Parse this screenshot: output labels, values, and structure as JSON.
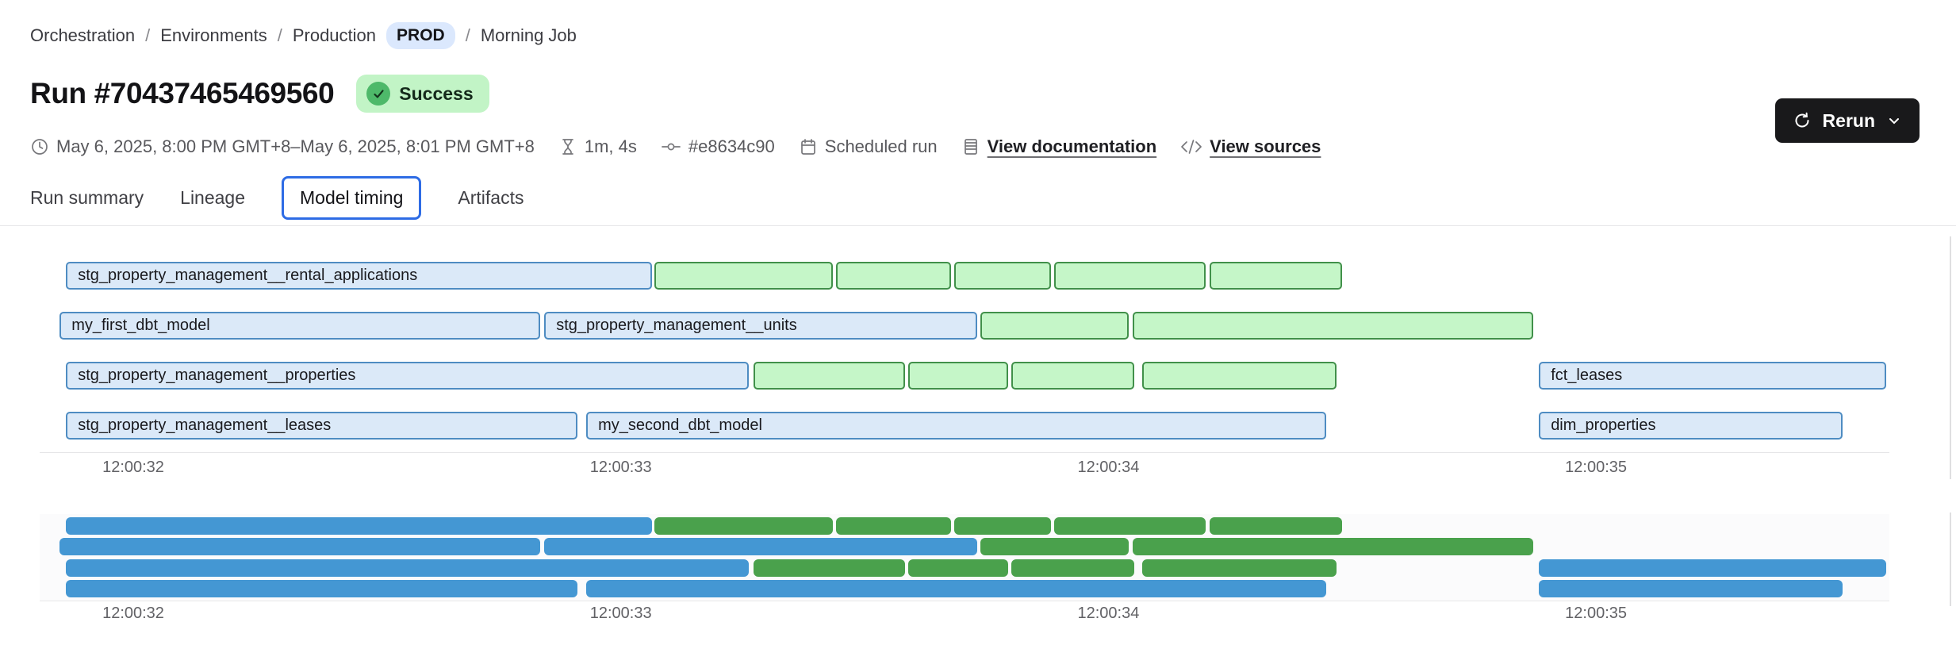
{
  "breadcrumb": {
    "separator": "/",
    "item1": "Orchestration",
    "item2": "Environments",
    "item3": "Production",
    "env_badge": "PROD",
    "item4": "Morning Job"
  },
  "header": {
    "title": "Run #70437465469560",
    "status": "Success"
  },
  "actions": {
    "rerun_label": "Rerun"
  },
  "meta": {
    "time_range": "May 6, 2025, 8:00 PM GMT+8–May 6, 2025, 8:01 PM GMT+8",
    "duration": "1m, 4s",
    "commit": "#e8634c90",
    "trigger": "Scheduled run",
    "doc_link": "View documentation",
    "sources_link": "View sources",
    "icons": [
      "clock-icon",
      "hourglass-icon",
      "git-commit-icon",
      "calendar-icon",
      "document-icon",
      "code-icon"
    ]
  },
  "tabs": [
    {
      "label": "Run summary",
      "active": false
    },
    {
      "label": "Lineage",
      "active": false
    },
    {
      "label": "Model timing",
      "active": true
    },
    {
      "label": "Artifacts",
      "active": false
    }
  ],
  "colors": {
    "bar_blue_fill": "#dbe9f8",
    "bar_blue_border": "#4e8cc2",
    "bar_green_fill": "#c5f6c8",
    "bar_green_border": "#41904a",
    "overview_blue": "#4497d3",
    "overview_green": "#4aa14c",
    "status_badge_bg": "#c2f4c6",
    "status_badge_icon": "#4eb96a",
    "env_badge_bg": "#dbe8fd",
    "active_tab_border": "#2e6ce5",
    "rerun_button_bg": "#19191b"
  },
  "chart_data": {
    "type": "gantt",
    "title": "Model timing",
    "grid": false,
    "legend": "none",
    "time_unit": "seconds after 12:00:00 run clock",
    "x_axis": {
      "tick_labels": [
        "12:00:32",
        "12:00:33",
        "12:00:34",
        "12:00:35"
      ],
      "tick_seconds": [
        32,
        33,
        34,
        35
      ]
    },
    "views": [
      "detail-gantt",
      "overview-strip"
    ],
    "rows": [
      [
        {
          "label": "stg_property_management__rental_applications",
          "color": "blue",
          "start": 31.862,
          "end": 33.064
        },
        {
          "color": "green",
          "start": 33.068,
          "end": 33.435
        },
        {
          "color": "green",
          "start": 33.441,
          "end": 33.677
        },
        {
          "color": "green",
          "start": 33.684,
          "end": 33.882
        },
        {
          "color": "green",
          "start": 33.888,
          "end": 34.2
        },
        {
          "color": "green",
          "start": 34.208,
          "end": 34.479
        }
      ],
      [
        {
          "label": "my_first_dbt_model",
          "color": "blue",
          "start": 31.849,
          "end": 32.835
        },
        {
          "label": "stg_property_management__units",
          "color": "blue",
          "start": 32.843,
          "end": 33.731
        },
        {
          "color": "green",
          "start": 33.738,
          "end": 34.042
        },
        {
          "color": "green",
          "start": 34.05,
          "end": 34.872
        }
      ],
      [
        {
          "label": "stg_property_management__properties",
          "color": "blue",
          "start": 31.862,
          "end": 33.263
        },
        {
          "color": "green",
          "start": 33.272,
          "end": 33.583
        },
        {
          "color": "green",
          "start": 33.59,
          "end": 33.795
        },
        {
          "color": "green",
          "start": 33.801,
          "end": 34.053
        },
        {
          "color": "green",
          "start": 34.07,
          "end": 34.468
        },
        {
          "label": "fct_leases",
          "color": "blue",
          "start": 34.883,
          "end": 35.596
        }
      ],
      [
        {
          "label": "stg_property_management__leases",
          "color": "blue",
          "start": 31.862,
          "end": 32.911
        },
        {
          "label": "my_second_dbt_model",
          "color": "blue",
          "start": 32.929,
          "end": 34.447
        },
        {
          "label": "dim_properties",
          "color": "blue",
          "start": 34.883,
          "end": 35.506
        }
      ]
    ]
  }
}
